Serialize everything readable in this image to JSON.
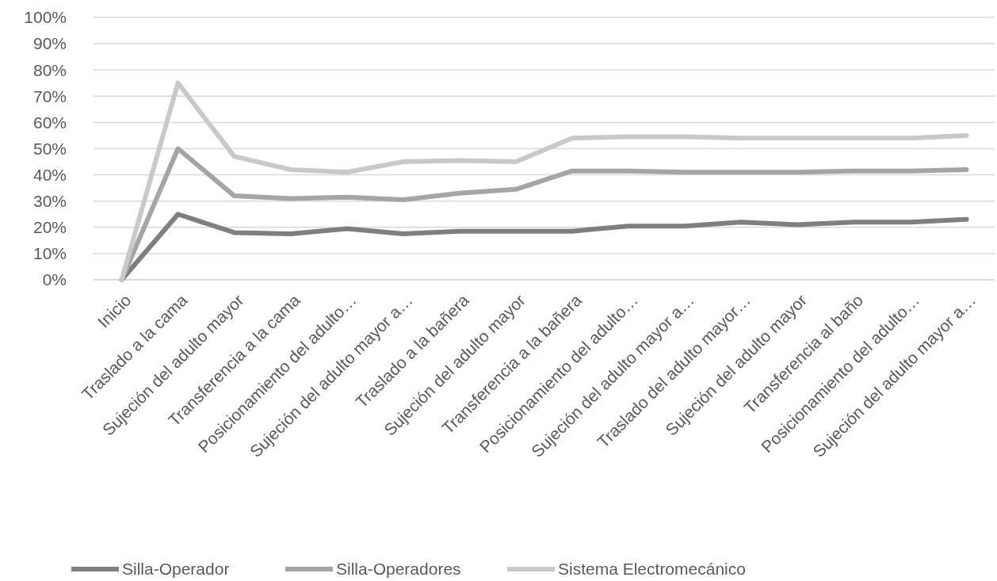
{
  "chart_data": {
    "type": "line",
    "categories": [
      "Inicio",
      "Traslado a la cama",
      "Sujeción del adulto mayor",
      "Transferencia a la cama",
      "Posicionamiento del adulto…",
      "Sujeción del adulto mayor a…",
      "Traslado a la bañera",
      "Sujeción del adulto mayor",
      "Transferencia a la bañera",
      "Posicionamiento del adulto…",
      "Sujeción del adulto mayor a…",
      "Traslado del adulto mayor…",
      "Sujeción del adulto mayor",
      "Transferencia al baño",
      "Posicionamiento del adulto…",
      "Sujeción del adulto mayor a…"
    ],
    "series": [
      {
        "name": "Silla-Operador",
        "color": "#7f7f7f",
        "values": [
          0,
          25,
          18,
          17.5,
          19.5,
          17.5,
          18.5,
          18.5,
          18.5,
          20.5,
          20.5,
          22,
          21,
          22,
          22,
          23
        ]
      },
      {
        "name": "Silla-Operadores",
        "color": "#a5a5a5",
        "values": [
          0,
          50,
          32,
          31,
          31.5,
          30.5,
          33,
          34.5,
          41.5,
          41.5,
          41,
          41,
          41,
          41.5,
          41.5,
          42
        ]
      },
      {
        "name": "Sistema Electromecánico",
        "color": "#c9c9c9",
        "values": [
          0,
          75,
          47,
          42,
          41,
          45,
          45.5,
          45,
          54,
          54.5,
          54.5,
          54,
          54,
          54,
          54,
          55
        ]
      }
    ],
    "ylim": [
      0,
      100
    ],
    "yticks": [
      {
        "value": 0,
        "label": "0%"
      },
      {
        "value": 10,
        "label": "10%"
      },
      {
        "value": 20,
        "label": "20%"
      },
      {
        "value": 30,
        "label": "30%"
      },
      {
        "value": 40,
        "label": "40%"
      },
      {
        "value": 50,
        "label": "50%"
      },
      {
        "value": 60,
        "label": "60%"
      },
      {
        "value": 70,
        "label": "70%"
      },
      {
        "value": 80,
        "label": "80%"
      },
      {
        "value": 90,
        "label": "90%"
      },
      {
        "value": 100,
        "label": "100%"
      }
    ],
    "grid": "y",
    "legend": "bottom",
    "marker": "none",
    "line_style": "solid"
  }
}
